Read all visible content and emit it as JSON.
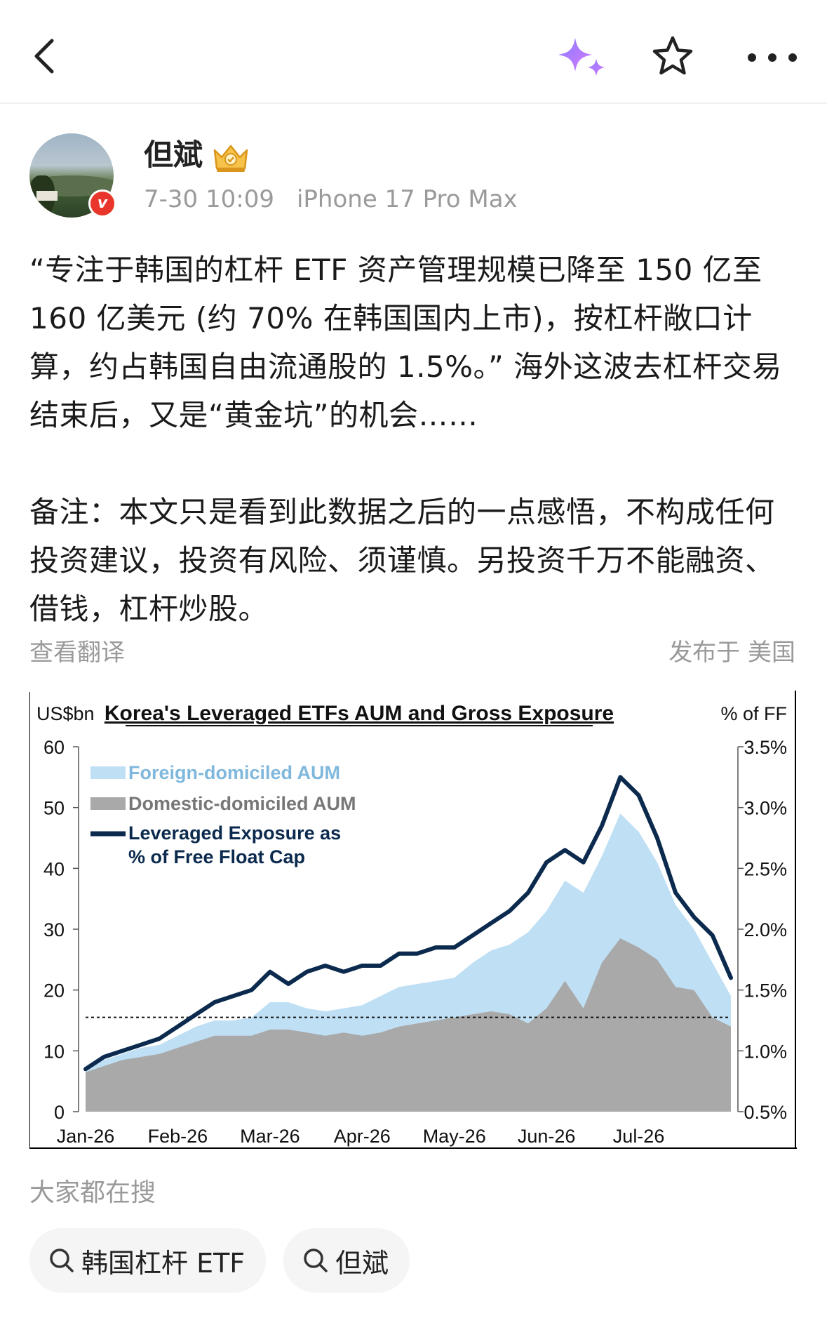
{
  "header": {
    "icons": [
      "back-icon",
      "ai-sparkle-icon",
      "favorite-star-icon",
      "more-icon"
    ]
  },
  "author": {
    "name": "但斌",
    "badge_icon": "crown-vip-icon",
    "verified_icon": "verified-v-icon",
    "date": "7-30 10:09",
    "device": "iPhone 17 Pro Max"
  },
  "post": {
    "text": "“专注于韩国的杠杆 ETF 资产管理规模已降至 150 亿至 160 亿美元 (约 70% 在韩国国内上市)，按杠杆敞口计算，约占韩国自由流通股的 1.5%。” 海外这波去杠杆交易结束后，又是“黄金坑”的机会……",
    "note": "备注：本文只是看到此数据之后的一点感悟，不构成任何投资建议，投资有风险、须谨慎。另投资千万不能融资、借钱，杠杆炒股。",
    "translate_label": "查看翻译",
    "location_label": "发布于 美国"
  },
  "chart_data": {
    "type": "area",
    "title": "Korea's Leveraged ETFs AUM and Gross Exposure",
    "ylabel_left": "US$bn",
    "ylabel_right": "% of FF",
    "ylim_left": [
      0,
      60
    ],
    "ylim_right": [
      0.5,
      3.5
    ],
    "yticks_left": [
      "0",
      "10",
      "20",
      "30",
      "40",
      "50",
      "60"
    ],
    "yticks_right": [
      "0.5%",
      "1.0%",
      "1.5%",
      "2.0%",
      "2.5%",
      "3.0%",
      "3.5%"
    ],
    "xticks": [
      "Jan-26",
      "Feb-26",
      "Mar-26",
      "Apr-26",
      "May-26",
      "Jun-26",
      "Jul-26"
    ],
    "legend": [
      "Foreign-domiciled AUM",
      "Domestic-domiciled AUM",
      "Leveraged Exposure as",
      "% of Free Float Cap"
    ],
    "legend_placement": "top-left",
    "reference_line": 15.5,
    "x": [
      0,
      0.2,
      0.4,
      0.6,
      0.8,
      1.0,
      1.2,
      1.4,
      1.6,
      1.8,
      2.0,
      2.2,
      2.4,
      2.6,
      2.8,
      3.0,
      3.2,
      3.4,
      3.6,
      3.8,
      4.0,
      4.2,
      4.4,
      4.6,
      4.8,
      5.0,
      5.2,
      5.4,
      5.6,
      5.8,
      6.0,
      6.2,
      6.4,
      6.6,
      6.8,
      7.0
    ],
    "series": [
      {
        "name": "Domestic-domiciled AUM",
        "color": "#a9a9a9",
        "values": [
          6.5,
          7.5,
          8.5,
          9,
          9.5,
          10.5,
          11.5,
          12.5,
          12.5,
          12.5,
          13.5,
          13.5,
          13,
          12.5,
          13,
          12.5,
          13,
          14,
          14.5,
          15,
          15.5,
          16,
          16.5,
          16,
          14.5,
          17,
          21.5,
          17,
          24.5,
          28.5,
          27,
          25,
          20.5,
          20,
          15.5,
          14
        ]
      },
      {
        "name": "Foreign-domiciled AUM",
        "color": "#bfe0f4",
        "values": [
          7,
          8.5,
          9.5,
          10.5,
          11,
          12.5,
          14,
          15,
          15,
          15.5,
          18,
          18,
          17,
          16.5,
          17,
          17.5,
          19,
          20.5,
          21,
          21.5,
          22,
          24.5,
          26.5,
          27.5,
          29.5,
          33,
          38,
          36,
          42,
          49,
          46,
          41,
          34,
          30,
          24.5,
          19
        ]
      },
      {
        "name": "Leveraged Exposure as % of Free Float Cap",
        "color": "#0b2a4e",
        "values": [
          0.85,
          0.95,
          1.0,
          1.05,
          1.1,
          1.2,
          1.3,
          1.4,
          1.45,
          1.5,
          1.65,
          1.55,
          1.65,
          1.7,
          1.65,
          1.7,
          1.7,
          1.8,
          1.8,
          1.85,
          1.85,
          1.95,
          2.05,
          2.15,
          2.3,
          2.55,
          2.65,
          2.55,
          2.85,
          3.25,
          3.1,
          2.75,
          2.3,
          2.1,
          1.95,
          1.6
        ]
      }
    ]
  },
  "search": {
    "title": "大家都在搜",
    "chips": [
      {
        "label": "韩国杠杆 ETF",
        "icon": "search-icon"
      },
      {
        "label": "但斌",
        "icon": "search-icon"
      }
    ]
  }
}
